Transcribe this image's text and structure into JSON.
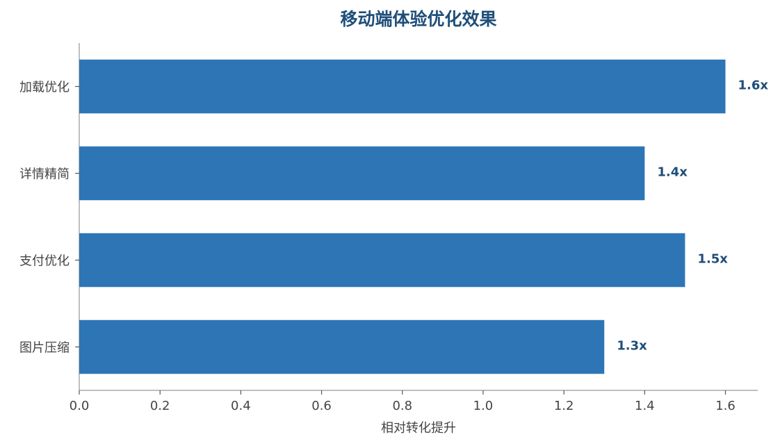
{
  "chart_data": {
    "type": "barh",
    "title": "移动端体验优化效果",
    "x_label": "相对转化提升",
    "categories": [
      "加载优化",
      "详情精简",
      "支付优化",
      "图片压缩"
    ],
    "values": [
      1.6,
      1.4,
      1.5,
      1.3
    ],
    "value_labels": [
      "1.6x",
      "1.4x",
      "1.5x",
      "1.3x"
    ],
    "color": "#2e75b6",
    "xlim": [
      0,
      1.68
    ],
    "xticks": [
      {
        "value": 0,
        "label": "0.0"
      },
      0.2,
      0.4,
      0.6,
      0.8,
      {
        "value": 1,
        "label": "1.0"
      },
      1.2,
      1.4,
      1.6
    ],
    "grid": false
  }
}
